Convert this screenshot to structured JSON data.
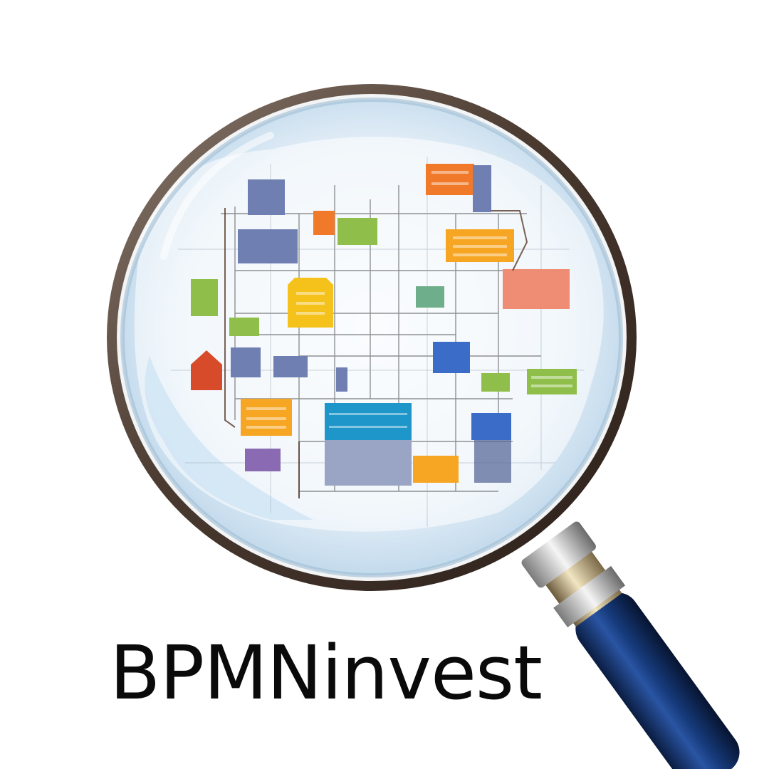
{
  "brand": {
    "name": "BPMNinvest"
  },
  "illustration": {
    "icon": "magnifying-glass-icon",
    "subject": "process-map-icon"
  },
  "colors": {
    "rim": "#6e5a4c",
    "lens": "#e3eef7",
    "handle": "#0f2a5c",
    "text": "#0a0a0a",
    "block_palette": [
      "#f07a2a",
      "#f6a623",
      "#f5c21b",
      "#8fbf4a",
      "#6f7fb2",
      "#3b6cc7",
      "#1f96c9",
      "#d84b2a",
      "#ef8d74",
      "#8a6ab3",
      "#6fae8a"
    ]
  }
}
